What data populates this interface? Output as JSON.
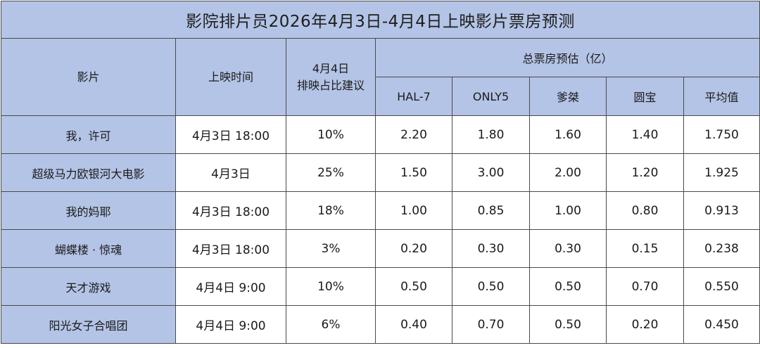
{
  "title": "影院排片员2026年4月3日-4月4日上映影片票房预测",
  "headers": {
    "movie": "影片",
    "release_time": "上映时间",
    "share_line1": "4月4日",
    "share_line2": "排映占比建议",
    "box_office_group": "总票房预估（亿）",
    "predictors": [
      "HAL-7",
      "ONLY5",
      "爹桀",
      "圆宝",
      "平均值"
    ]
  },
  "rows": [
    {
      "movie": "我，许可",
      "release": "4月3日 18:00",
      "share": "10%",
      "v": [
        "2.20",
        "1.80",
        "1.60",
        "1.40",
        "1.750"
      ]
    },
    {
      "movie": "超级马力欧银河大电影",
      "release": "4月3日",
      "share": "25%",
      "v": [
        "1.50",
        "3.00",
        "2.00",
        "1.20",
        "1.925"
      ]
    },
    {
      "movie": "我的妈耶",
      "release": "4月3日 18:00",
      "share": "18%",
      "v": [
        "1.00",
        "0.85",
        "1.00",
        "0.80",
        "0.913"
      ]
    },
    {
      "movie": "蝴蝶楼 · 惊魂",
      "release": "4月3日 18:00",
      "share": "3%",
      "v": [
        "0.20",
        "0.30",
        "0.30",
        "0.15",
        "0.238"
      ]
    },
    {
      "movie": "天才游戏",
      "release": "4月4日 9:00",
      "share": "10%",
      "v": [
        "0.50",
        "0.50",
        "0.50",
        "0.70",
        "0.550"
      ]
    },
    {
      "movie": "阳光女子合唱团",
      "release": "4月4日 9:00",
      "share": "6%",
      "v": [
        "0.40",
        "0.70",
        "0.50",
        "0.20",
        "0.450"
      ]
    }
  ],
  "colors": {
    "header_bg": "#b4c4e6",
    "border": "#4a4a4a",
    "cell_bg": "#ffffff"
  }
}
